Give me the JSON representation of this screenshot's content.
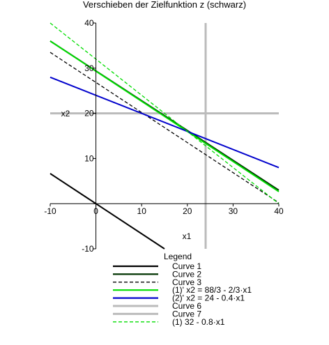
{
  "chart_data": {
    "type": "line",
    "title": "Verschieben der Zielfunktion z (schwarz)",
    "xlabel": "x1",
    "ylabel": "x2",
    "xlim": [
      -10,
      40
    ],
    "ylim": [
      -10,
      40
    ],
    "xticks": [
      "-10",
      "0",
      "10",
      "20",
      "30",
      "40"
    ],
    "yticks": [
      "-10",
      "0",
      "10",
      "20",
      "30",
      "40"
    ],
    "grid": false,
    "legend_title": "Legend",
    "legend_placement": "bottom",
    "series": [
      {
        "name": "Curve 1",
        "color": "#000000",
        "style": "solid",
        "x": [
          -10,
          15
        ],
        "y": [
          6.67,
          -10
        ]
      },
      {
        "name": "Curve 2",
        "color": "#003300",
        "style": "solid",
        "x": [
          -10,
          40
        ],
        "y": [
          36,
          3
        ]
      },
      {
        "name": "Curve 3",
        "color": "#000000",
        "style": "dashed",
        "x": [
          -10,
          40
        ],
        "y": [
          33.5,
          0.2
        ]
      },
      {
        "name": "(1)' x2 = 88/3 - 2/3·x1",
        "color": "#00dd00",
        "style": "solid",
        "x": [
          -10,
          40
        ],
        "y": [
          36,
          2.67
        ]
      },
      {
        "name": "(2)' x2 = 24 - 0.4·x1",
        "color": "#0000cc",
        "style": "solid",
        "x": [
          -10,
          40
        ],
        "y": [
          28,
          8
        ]
      },
      {
        "name": "Curve 6",
        "color": "#bbbbbb",
        "style": "solid",
        "x": [
          24,
          24
        ],
        "y": [
          -10,
          40
        ]
      },
      {
        "name": "Curve 7",
        "color": "#bbbbbb",
        "style": "solid",
        "x": [
          -10,
          40
        ],
        "y": [
          20,
          20
        ]
      },
      {
        "name": "(1) 32 - 0.8·x1",
        "color": "#00dd00",
        "style": "dashed",
        "x": [
          -10,
          40
        ],
        "y": [
          40,
          0
        ]
      }
    ]
  }
}
